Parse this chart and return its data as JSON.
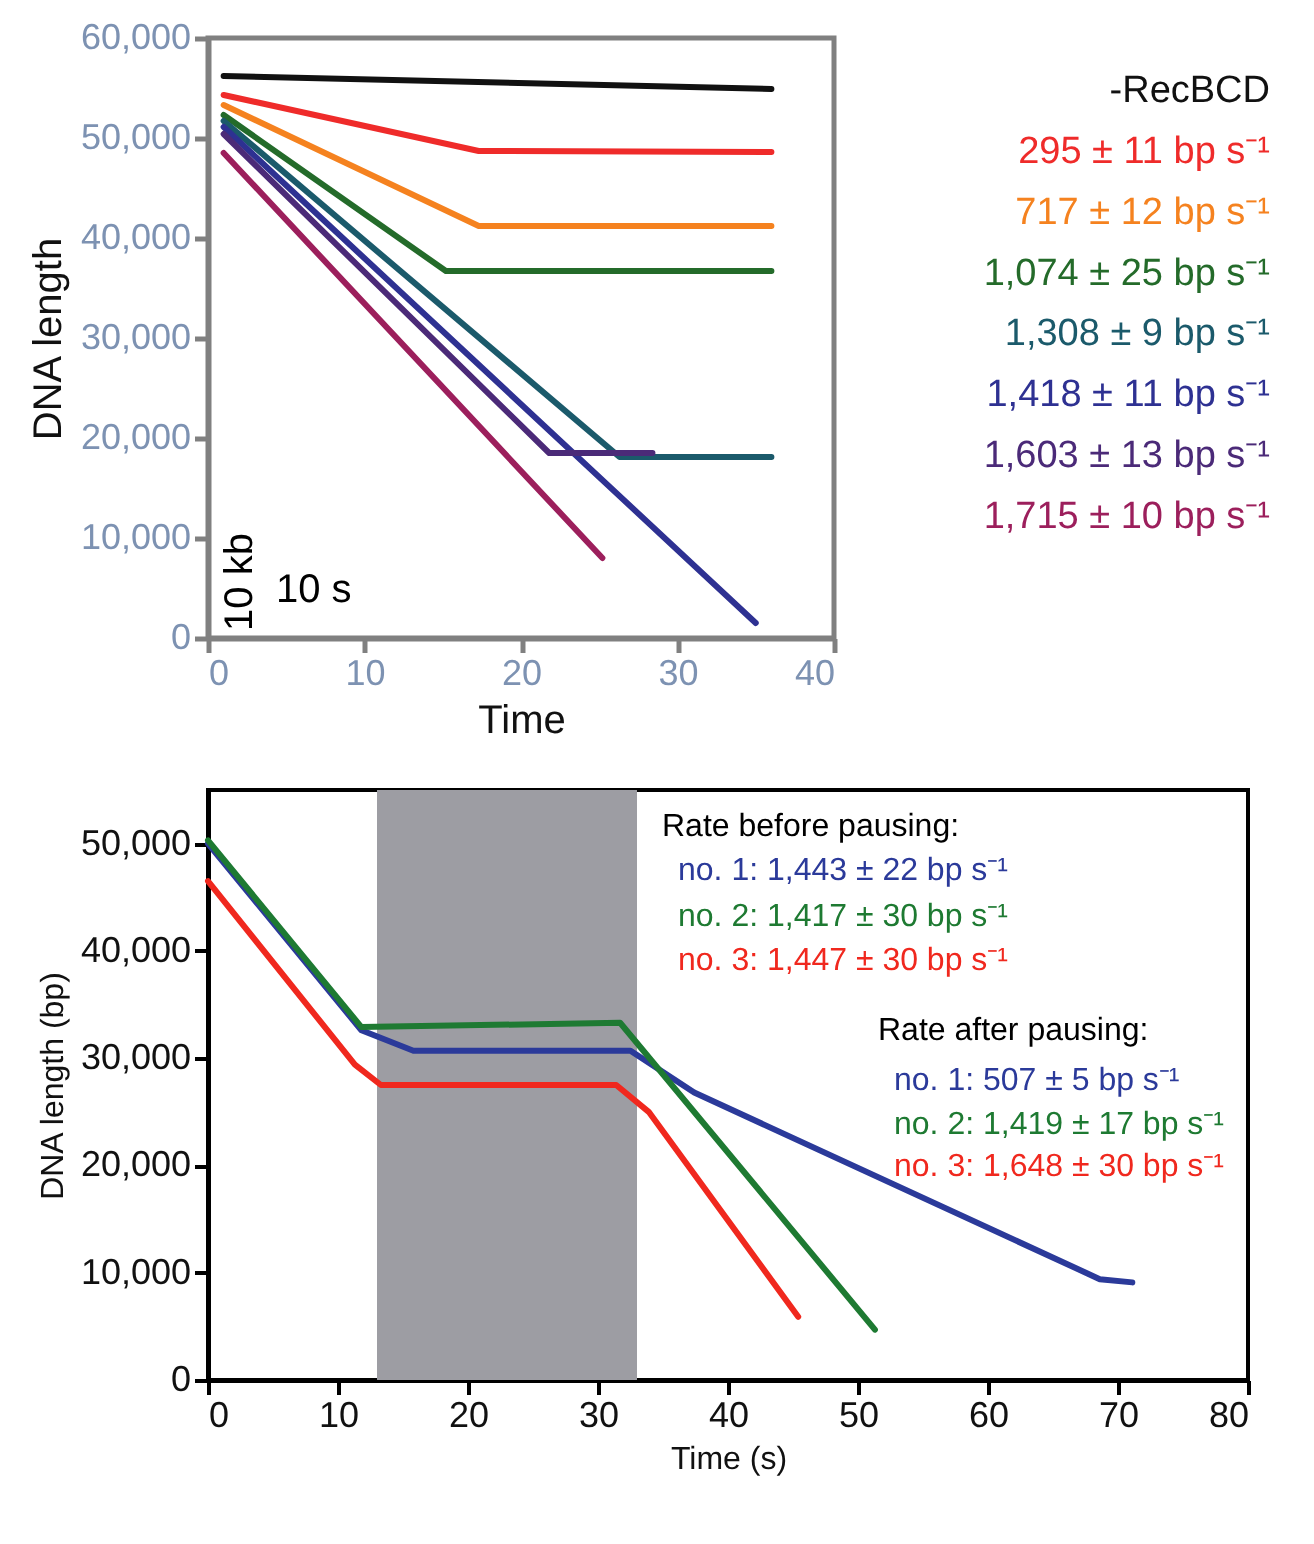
{
  "chart_data": [
    {
      "type": "line",
      "xlabel": "Time",
      "ylabel": "DNA length",
      "xlim": [
        0,
        40
      ],
      "xticks": [
        0,
        10,
        20,
        30,
        40
      ],
      "ylim": [
        0,
        60000
      ],
      "yticks": [
        0,
        {
          "value": 10000,
          "label": "10,000"
        },
        {
          "value": 20000,
          "label": "20,000"
        },
        {
          "value": 30000,
          "label": "30,000"
        },
        {
          "value": 40000,
          "label": "40,000"
        },
        {
          "value": 50000,
          "label": "50,000"
        },
        {
          "value": 60000,
          "label": "60,000"
        }
      ],
      "grid": false,
      "legend": "right",
      "annotations": [
        "10 kb",
        "10 s"
      ],
      "series": [
        {
          "name": "-RecBCD",
          "color": "#111111",
          "x": [
            1,
            36
          ],
          "values": [
            56200,
            54900
          ]
        },
        {
          "name": "295 ± 11 bp s⁻¹",
          "color": "#ef2b2a",
          "x": [
            1,
            17.3,
            36
          ],
          "values": [
            54300,
            48700,
            48600
          ]
        },
        {
          "name": "717 ± 12 bp s⁻¹",
          "color": "#f5821f",
          "x": [
            1,
            17.3,
            36
          ],
          "values": [
            53300,
            41200,
            41200
          ]
        },
        {
          "name": "1,074 ± 25 bp s⁻¹",
          "color": "#246b2a",
          "x": [
            1,
            15.2,
            36
          ],
          "values": [
            52300,
            36700,
            36700
          ]
        },
        {
          "name": "1,308 ± 9   bp s⁻¹",
          "color": "#1b5a6b",
          "x": [
            1,
            26.3,
            36
          ],
          "values": [
            51700,
            18100,
            18100
          ]
        },
        {
          "name": "1,418 ± 11 bp s⁻¹",
          "color": "#2e3192",
          "x": [
            1,
            35
          ],
          "values": [
            51100,
            1500
          ]
        },
        {
          "name": "1,603 ± 13 bp s⁻¹",
          "color": "#4b2a78",
          "x": [
            1,
            21.8,
            28.4
          ],
          "values": [
            50400,
            18500,
            18500
          ]
        },
        {
          "name": "1,715 ± 10 bp s⁻¹",
          "color": "#9c1f5c",
          "x": [
            1,
            25.2
          ],
          "values": [
            48500,
            8000
          ]
        }
      ]
    },
    {
      "type": "line",
      "xlabel": "Time (s)",
      "ylabel": "DNA length (bp)",
      "xlim": [
        0,
        80
      ],
      "xticks": [
        0,
        10,
        20,
        30,
        40,
        50,
        60,
        70,
        80
      ],
      "ylim": [
        0,
        55000
      ],
      "yticks": [
        0,
        {
          "value": 10000,
          "label": "10,000"
        },
        {
          "value": 20000,
          "label": "20,000"
        },
        {
          "value": 30000,
          "label": "30,000"
        },
        {
          "value": 40000,
          "label": "40,000"
        },
        {
          "value": 50000,
          "label": "50,000"
        }
      ],
      "grid": false,
      "bands": [
        {
          "axis": "x",
          "from": 13,
          "to": 33,
          "color": "#9d9da3"
        }
      ],
      "annotations": [
        "Rate before pausing:",
        "no. 1: 1,443 ± 22 bp s⁻¹",
        "no. 2: 1,417 ± 30 bp s⁻¹",
        "no. 3: 1,447 ± 30 bp s⁻¹",
        "Rate after pausing:",
        "no. 1:    507 ± 5   bp s⁻¹",
        "no. 2: 1,419 ± 17 bp s⁻¹",
        "no. 3: 1,648 ± 30 bp s⁻¹"
      ],
      "series": [
        {
          "color": "#2b3a9a",
          "x": [
            0,
            11.8,
            15.8,
            32.5,
            37.4,
            68.6,
            71.1
          ],
          "values": [
            50000,
            32600,
            30700,
            30700,
            26800,
            9400,
            9100
          ]
        },
        {
          "color": "#1e7a32",
          "x": [
            0,
            11.8,
            31.7,
            51.3
          ],
          "values": [
            50300,
            32900,
            33300,
            4700
          ]
        },
        {
          "color": "#f0281e",
          "x": [
            0,
            11.3,
            13.3,
            31.4,
            33.9,
            45.4
          ],
          "values": [
            46500,
            29400,
            27500,
            27500,
            25000,
            5900
          ]
        }
      ]
    }
  ]
}
